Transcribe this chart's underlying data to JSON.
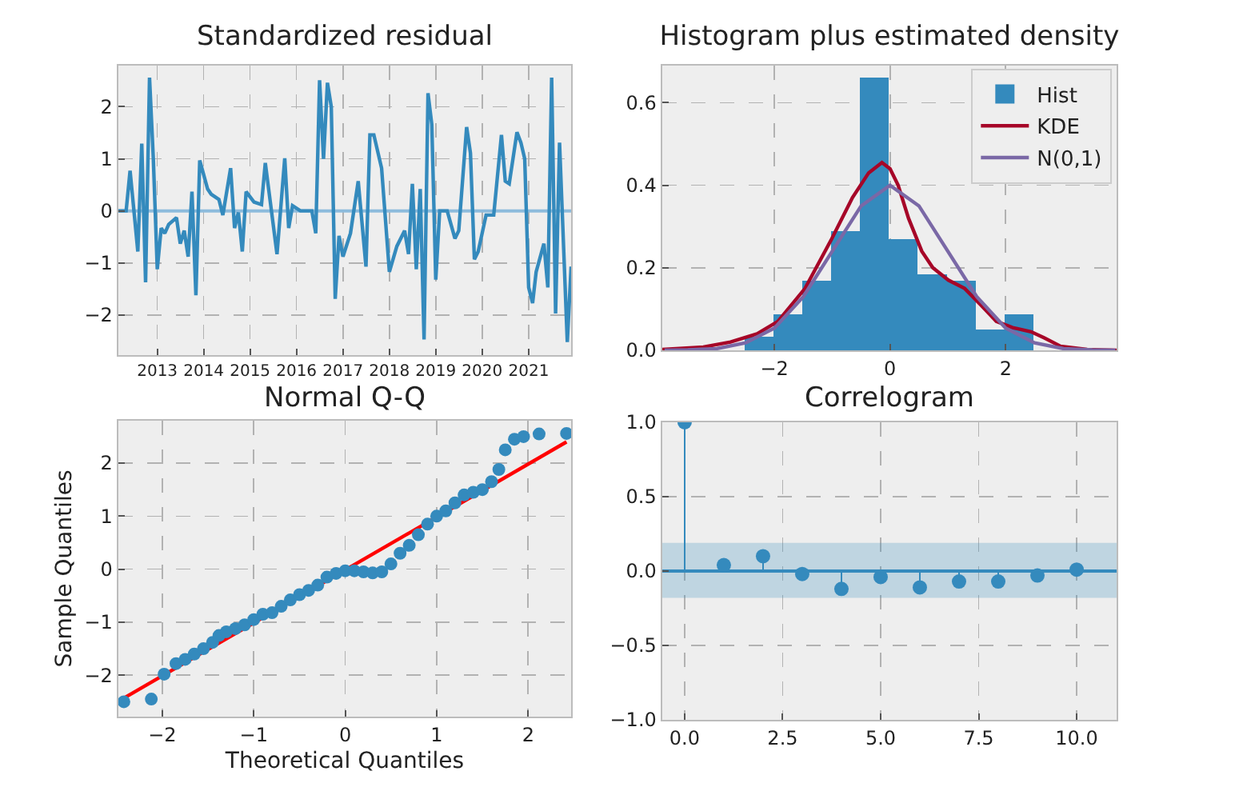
{
  "chart_data": [
    {
      "type": "line",
      "title": "Standardized residual",
      "color": "#348abd",
      "x": [
        "2012-03",
        "2012-05",
        "2012-06",
        "2012-08",
        "2012-09",
        "2012-10",
        "2012-11",
        "2012-12",
        "2013-01",
        "2013-02",
        "2013-03",
        "2013-04",
        "2013-06",
        "2013-07",
        "2013-08",
        "2013-09",
        "2013-10",
        "2013-11",
        "2013-12",
        "2014-02",
        "2014-03",
        "2014-05",
        "2014-06",
        "2014-08",
        "2014-09",
        "2014-10",
        "2014-11",
        "2014-12",
        "2015-02",
        "2015-04",
        "2015-05",
        "2015-08",
        "2015-10",
        "2015-11",
        "2015-12",
        "2016-02",
        "2016-05",
        "2016-06",
        "2016-07",
        "2016-08",
        "2016-09",
        "2016-10",
        "2016-11",
        "2016-12",
        "2017-01",
        "2017-03",
        "2017-05",
        "2017-07",
        "2017-08",
        "2017-09",
        "2017-11",
        "2018-01",
        "2018-03",
        "2018-05",
        "2018-06",
        "2018-07",
        "2018-08",
        "2018-09",
        "2018-10",
        "2018-11",
        "2018-12",
        "2019-01",
        "2019-02",
        "2019-04",
        "2019-06",
        "2019-07",
        "2019-09",
        "2019-10",
        "2019-11",
        "2019-12",
        "2020-02",
        "2020-04",
        "2020-06",
        "2020-07",
        "2020-08",
        "2020-10",
        "2020-11",
        "2020-12",
        "2021-01",
        "2021-02",
        "2021-03",
        "2021-05",
        "2021-06",
        "2021-07",
        "2021-08",
        "2021-09",
        "2021-11",
        "2021-12"
      ],
      "values": [
        0,
        0,
        0.77,
        -0.78,
        1.29,
        -1.37,
        2.56,
        1.0,
        -1.12,
        -0.33,
        -0.43,
        -0.26,
        -0.13,
        -0.63,
        -0.38,
        -0.88,
        0.37,
        -1.62,
        0.97,
        0.42,
        0.32,
        0.22,
        -0.08,
        0.82,
        -0.33,
        -0.03,
        -0.78,
        0.37,
        0.17,
        0.12,
        0.92,
        -0.83,
        1.01,
        -0.33,
        0.1,
        0,
        0,
        -0.43,
        2.51,
        1.0,
        2.46,
        2.0,
        -1.69,
        -0.48,
        -0.88,
        -0.43,
        0.57,
        -1.07,
        1.46,
        1.46,
        0.82,
        -1.17,
        -0.68,
        -0.38,
        -0.83,
        0.52,
        -1.12,
        0.42,
        -2.47,
        2.26,
        1.66,
        -1.32,
        0,
        0,
        -0.53,
        -0.38,
        1.61,
        1.11,
        -0.93,
        -0.78,
        -0.08,
        -0.08,
        1.46,
        0.57,
        0.52,
        1.51,
        1.31,
        1.0,
        -1.47,
        -1.77,
        -1.17,
        -0.63,
        -1.47,
        2.56,
        -1.97,
        1.31,
        -2.52,
        -1.07
      ],
      "xlim": [
        "2012-03",
        "2021-12"
      ],
      "xticks": [
        {
          "value": "2013",
          "label": "2013"
        },
        {
          "value": "2014",
          "label": "2014"
        },
        {
          "value": "2015",
          "label": "2015"
        },
        {
          "value": "2016",
          "label": "2016"
        },
        {
          "value": "2017",
          "label": "2017"
        },
        {
          "value": "2018",
          "label": "2018"
        },
        {
          "value": "2019",
          "label": "2019"
        },
        {
          "value": "2020",
          "label": "2020"
        },
        {
          "value": "2021",
          "label": "2021"
        }
      ],
      "ylim": [
        -2.77,
        2.79
      ],
      "yticks": [
        {
          "value": -2,
          "label": "−2"
        },
        {
          "value": -1,
          "label": "−1"
        },
        0,
        1,
        2
      ],
      "ref_lines": [
        {
          "axis": "y",
          "value": 0,
          "color": "#8dbbdc"
        }
      ],
      "grid": true
    },
    {
      "type": "histogram",
      "title": "Histogram plus estimated density",
      "series": [
        {
          "name": "Hist",
          "color": "#348abd",
          "bins": [
            -2.52,
            -2.02,
            -1.52,
            -1.02,
            -0.52,
            -0.02,
            0.48,
            0.98,
            1.48,
            1.98,
            2.48
          ],
          "values": [
            0.032,
            0.087,
            0.168,
            0.288,
            0.66,
            0.27,
            0.184,
            0.168,
            0.05,
            0.087
          ]
        },
        {
          "name": "KDE",
          "type": "line",
          "color": "#a60628",
          "x": [
            -3.94,
            -3.23,
            -2.76,
            -2.3,
            -1.94,
            -1.47,
            -1.01,
            -0.65,
            -0.37,
            -0.14,
            0,
            0.14,
            0.32,
            0.55,
            0.74,
            1.01,
            1.29,
            1.57,
            1.84,
            2.12,
            2.44,
            2.67,
            2.95,
            3.41,
            3.92
          ],
          "values": [
            0.002,
            0.008,
            0.02,
            0.04,
            0.07,
            0.15,
            0.27,
            0.37,
            0.43,
            0.455,
            0.44,
            0.4,
            0.32,
            0.24,
            0.2,
            0.17,
            0.15,
            0.11,
            0.07,
            0.055,
            0.045,
            0.03,
            0.01,
            0.002,
            0
          ]
        },
        {
          "name": "N(0,1)",
          "type": "line",
          "color": "#7a68a6",
          "x": [
            -3.9,
            -3.5,
            -3,
            -2.5,
            -2,
            -1.5,
            -1,
            -0.5,
            0,
            0.5,
            1,
            1.5,
            2,
            2.5,
            3,
            3.5,
            3.9
          ],
          "values": [
            0,
            0.001,
            0.004,
            0.018,
            0.054,
            0.13,
            0.24,
            0.35,
            0.4,
            0.35,
            0.24,
            0.13,
            0.054,
            0.018,
            0.004,
            0.001,
            0
          ]
        }
      ],
      "xlim": [
        -3.94,
        3.92
      ],
      "xticks": [
        {
          "value": -2,
          "label": "−2"
        },
        0,
        2
      ],
      "ylim": [
        0,
        0.69
      ],
      "yticks": [
        {
          "value": 0,
          "label": "0.0"
        },
        0.2,
        0.4,
        0.6
      ],
      "legend": "top right",
      "grid": true
    },
    {
      "type": "scatter",
      "title": "Normal Q-Q",
      "xlabel": "Theoretical Quantiles",
      "ylabel": "Sample Quantiles",
      "series": [
        {
          "color": "#348abd",
          "marker": "circle",
          "x": [
            -2.42,
            -2.12,
            -1.98,
            -1.85,
            -1.75,
            -1.65,
            -1.55,
            -1.45,
            -1.38,
            -1.3,
            -1.2,
            -1.1,
            -1.0,
            -0.9,
            -0.8,
            -0.7,
            -0.6,
            -0.5,
            -0.4,
            -0.3,
            -0.2,
            -0.1,
            0,
            0.1,
            0.2,
            0.3,
            0.4,
            0.5,
            0.6,
            0.7,
            0.8,
            0.9,
            1.0,
            1.1,
            1.2,
            1.3,
            1.4,
            1.5,
            1.6,
            1.68,
            1.75,
            1.85,
            1.95,
            2.12,
            2.42
          ],
          "values": [
            -2.5,
            -2.45,
            -1.98,
            -1.78,
            -1.7,
            -1.6,
            -1.5,
            -1.38,
            -1.25,
            -1.18,
            -1.12,
            -1.05,
            -0.95,
            -0.85,
            -0.82,
            -0.7,
            -0.58,
            -0.48,
            -0.4,
            -0.3,
            -0.15,
            -0.08,
            -0.03,
            -0.03,
            -0.05,
            -0.07,
            -0.05,
            0.1,
            0.3,
            0.45,
            0.65,
            0.85,
            1.0,
            1.1,
            1.25,
            1.4,
            1.45,
            1.5,
            1.65,
            1.88,
            2.25,
            2.45,
            2.5,
            2.55,
            2.56
          ]
        },
        {
          "type": "line",
          "color": "#ff0000",
          "x": [
            -2.42,
            2.42
          ],
          "values": [
            -2.43,
            2.4
          ]
        }
      ],
      "xlim": [
        -2.48,
        2.47
      ],
      "xticks": [
        {
          "value": -2,
          "label": "−2"
        },
        {
          "value": -1,
          "label": "−1"
        },
        0,
        1,
        2
      ],
      "ylim": [
        -2.78,
        2.8
      ],
      "yticks": [
        {
          "value": -2,
          "label": "−2"
        },
        {
          "value": -1,
          "label": "−1"
        },
        0,
        1,
        2
      ],
      "grid": true
    },
    {
      "type": "lollipop",
      "title": "Correlogram",
      "marker": "circle",
      "series": [
        {
          "color": "#348abd",
          "x": [
            0,
            1,
            2,
            3,
            4,
            5,
            6,
            7,
            8,
            9,
            10
          ],
          "values": [
            1.0,
            0.04,
            0.1,
            -0.02,
            -0.12,
            -0.04,
            -0.11,
            -0.07,
            -0.07,
            -0.03,
            0.01
          ]
        }
      ],
      "bands": [
        {
          "axis": "y",
          "from": -0.18,
          "to": 0.19,
          "color": "#348abd"
        }
      ],
      "xlim": [
        -0.57,
        11.02
      ],
      "xticks": [
        {
          "value": 0,
          "label": "0.0"
        },
        2.5,
        {
          "value": 5,
          "label": "5.0"
        },
        7.5,
        {
          "value": 10,
          "label": "10.0"
        }
      ],
      "ylim": [
        -1,
        1
      ],
      "yticks": [
        {
          "value": -1,
          "label": "−1.0"
        },
        {
          "value": -0.5,
          "label": "−0.5"
        },
        {
          "value": 0,
          "label": "0.0"
        },
        0.5,
        {
          "value": 1,
          "label": "1.0"
        }
      ],
      "ref_lines": [
        {
          "axis": "y",
          "value": 0,
          "color": "#348abd"
        }
      ],
      "grid": true
    }
  ]
}
